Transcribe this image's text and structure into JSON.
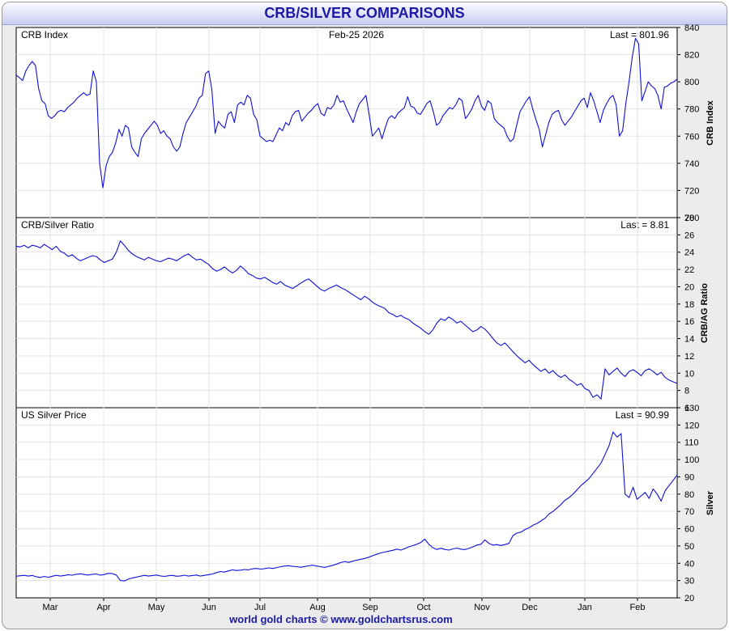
{
  "title": "CRB/SILVER COMPARISONS",
  "footer": "world gold charts © www.goldchartsrus.com",
  "chart_data": [
    {
      "type": "line",
      "name": "crb",
      "label": "CRB Index",
      "date": "Feb-25 2026",
      "last": "Last = 801.96",
      "ylabel": "CRB Index",
      "ylim": [
        700,
        840
      ],
      "yticks": [
        700,
        720,
        740,
        760,
        780,
        800,
        820,
        840
      ],
      "color": "#1010d8",
      "series": [
        805,
        803,
        801,
        808,
        812,
        815,
        812,
        795,
        786,
        784,
        775,
        773,
        775,
        778,
        779,
        778,
        781,
        783,
        785,
        788,
        790,
        792,
        790,
        791,
        808,
        800,
        740,
        722,
        738,
        745,
        748,
        755,
        765,
        760,
        768,
        766,
        752,
        748,
        745,
        758,
        762,
        765,
        768,
        771,
        768,
        762,
        764,
        760,
        758,
        752,
        749,
        752,
        762,
        770,
        774,
        778,
        782,
        788,
        790,
        806,
        808,
        794,
        762,
        771,
        768,
        766,
        776,
        778,
        770,
        783,
        785,
        783,
        790,
        788,
        776,
        772,
        760,
        758,
        756,
        757,
        756,
        761,
        766,
        764,
        770,
        768,
        775,
        778,
        779,
        771,
        774,
        777,
        779,
        782,
        784,
        777,
        775,
        781,
        780,
        783,
        790,
        785,
        786,
        780,
        775,
        770,
        778,
        784,
        787,
        790,
        776,
        760,
        763,
        766,
        758,
        766,
        773,
        775,
        773,
        777,
        779,
        781,
        789,
        782,
        781,
        777,
        776,
        780,
        784,
        786,
        778,
        768,
        770,
        775,
        778,
        781,
        780,
        783,
        788,
        786,
        773,
        776,
        780,
        786,
        790,
        782,
        779,
        786,
        784,
        773,
        770,
        768,
        766,
        760,
        756,
        758,
        768,
        778,
        782,
        786,
        789,
        780,
        772,
        765,
        752,
        761,
        770,
        776,
        778,
        779,
        772,
        768,
        771,
        774,
        778,
        782,
        786,
        788,
        781,
        792,
        786,
        778,
        770,
        779,
        784,
        788,
        790,
        783,
        760,
        764,
        784,
        800,
        818,
        832,
        828,
        786,
        793,
        800,
        797,
        795,
        790,
        780,
        796,
        797,
        799,
        800,
        802
      ],
      "x_labels": [
        "Mar",
        "Apr",
        "May",
        "Jun",
        "Jul",
        "Aug",
        "Sep",
        "Oct",
        "Nov",
        "Dec",
        "Jan",
        "Feb"
      ]
    },
    {
      "type": "line",
      "name": "ratio",
      "label": "CRB/Silver Ratio",
      "last": "Last = 8.81",
      "ylabel": "CRB/AG Ratio",
      "ylim": [
        6,
        28
      ],
      "yticks": [
        6,
        8,
        10,
        12,
        14,
        16,
        18,
        20,
        22,
        24,
        26,
        28
      ],
      "color": "#1010d8",
      "series": [
        24.7,
        24.6,
        24.8,
        24.5,
        24.8,
        24.7,
        24.5,
        24.9,
        24.6,
        24.3,
        24.7,
        24.1,
        23.9,
        23.5,
        23.7,
        23.3,
        23.0,
        23.2,
        23.4,
        23.6,
        23.5,
        23.1,
        22.8,
        23.0,
        23.2,
        24.0,
        25.3,
        24.8,
        24.2,
        23.8,
        23.5,
        23.3,
        23.1,
        23.4,
        23.2,
        23.0,
        22.9,
        23.1,
        23.3,
        23.2,
        23.0,
        23.3,
        23.6,
        23.8,
        23.4,
        23.1,
        23.2,
        22.9,
        22.6,
        22.1,
        21.8,
        22.0,
        22.3,
        21.9,
        21.6,
        21.9,
        22.4,
        22.0,
        21.5,
        21.3,
        21.0,
        20.9,
        21.1,
        20.8,
        20.5,
        20.3,
        20.6,
        20.2,
        20.0,
        19.8,
        20.1,
        20.4,
        20.7,
        20.9,
        20.5,
        20.1,
        19.7,
        19.5,
        19.8,
        20.0,
        20.2,
        19.9,
        19.7,
        19.4,
        19.1,
        18.8,
        18.5,
        18.9,
        18.6,
        18.2,
        17.9,
        17.7,
        17.5,
        17.0,
        16.8,
        16.5,
        16.7,
        16.4,
        16.2,
        15.8,
        15.5,
        15.2,
        14.8,
        14.5,
        15.0,
        15.8,
        16.3,
        16.1,
        16.5,
        16.2,
        15.8,
        16.0,
        15.6,
        15.2,
        14.8,
        15.0,
        15.4,
        15.1,
        14.6,
        14.0,
        13.5,
        13.2,
        13.5,
        13.0,
        12.5,
        12.0,
        11.6,
        11.2,
        11.5,
        11.0,
        10.6,
        10.2,
        10.5,
        10.0,
        10.3,
        9.8,
        9.5,
        9.8,
        9.3,
        9.0,
        8.6,
        8.8,
        8.2,
        8.0,
        7.2,
        7.5,
        7.0,
        10.5,
        9.8,
        10.2,
        10.6,
        10.0,
        9.6,
        10.2,
        10.4,
        10.1,
        9.7,
        10.3,
        10.5,
        10.2,
        9.8,
        10.1,
        9.5,
        9.2,
        9.0,
        8.81
      ],
      "x_labels": [
        "Mar",
        "Apr",
        "May",
        "Jun",
        "Jul",
        "Aug",
        "Sep",
        "Oct",
        "Nov",
        "Dec",
        "Jan",
        "Feb"
      ]
    },
    {
      "type": "line",
      "name": "silver",
      "label": "US Silver Price",
      "last": "Last = 90.99",
      "ylabel": "Silver",
      "ylim": [
        20,
        130
      ],
      "yticks": [
        20,
        30,
        40,
        50,
        60,
        70,
        80,
        90,
        100,
        110,
        120,
        130
      ],
      "color": "#1010d8",
      "series": [
        32.5,
        32.8,
        33.0,
        32.6,
        32.9,
        32.2,
        31.8,
        32.4,
        31.9,
        32.5,
        33.0,
        32.6,
        32.9,
        33.4,
        33.1,
        33.6,
        33.9,
        33.5,
        33.2,
        33.6,
        33.8,
        33.1,
        33.5,
        34.2,
        34.0,
        33.2,
        30.0,
        29.8,
        30.8,
        31.5,
        32.0,
        32.5,
        33.0,
        32.6,
        32.9,
        33.2,
        32.7,
        32.4,
        32.8,
        33.0,
        32.5,
        32.7,
        33.1,
        32.6,
        32.9,
        33.2,
        32.6,
        33.0,
        33.4,
        33.8,
        34.6,
        35.2,
        34.9,
        35.6,
        36.2,
        35.8,
        36.0,
        36.4,
        36.2,
        36.8,
        37.0,
        36.6,
        36.9,
        37.3,
        37.0,
        37.5,
        38.0,
        38.4,
        38.6,
        38.2,
        38.0,
        37.7,
        38.1,
        38.5,
        38.9,
        38.4,
        38.0,
        37.6,
        38.2,
        38.8,
        39.5,
        40.4,
        41.0,
        40.5,
        41.2,
        41.8,
        42.3,
        42.8,
        43.5,
        44.4,
        45.2,
        46.0,
        46.5,
        47.0,
        47.5,
        48.2,
        47.6,
        48.5,
        49.5,
        50.2,
        51.0,
        52.0,
        54.0,
        51.0,
        49.0,
        48.0,
        48.7,
        48.0,
        47.6,
        48.3,
        48.8,
        48.2,
        47.9,
        48.6,
        49.5,
        50.5,
        51.0,
        53.5,
        51.5,
        50.5,
        50.8,
        50.3,
        50.8,
        51.5,
        56.0,
        57.5,
        58.0,
        59.5,
        60.5,
        62.0,
        63.0,
        64.5,
        66.0,
        68.5,
        70.0,
        72.0,
        74.0,
        76.5,
        78.0,
        80.0,
        82.5,
        85.0,
        87.0,
        89.0,
        92.0,
        95.0,
        98.0,
        103.0,
        108.0,
        116.0,
        113.0,
        115.0,
        80.0,
        78.0,
        84.0,
        77.0,
        79.0,
        81.0,
        77.5,
        83.0,
        80.0,
        76.0,
        82.0,
        85.0,
        88.0,
        90.99
      ],
      "x_labels": [
        "Mar",
        "Apr",
        "May",
        "Jun",
        "Jul",
        "Aug",
        "Sep",
        "Oct",
        "Nov",
        "Dec",
        "Jan",
        "Feb"
      ]
    }
  ]
}
